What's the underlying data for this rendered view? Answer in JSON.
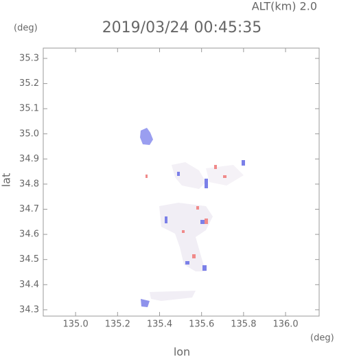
{
  "chart_data": {
    "type": "map",
    "title": "2019/03/24 00:45:35",
    "subtitle": "ALT(km) 2.0",
    "x_label": "lon",
    "x_unit": "(deg)",
    "y_label": "lat",
    "y_unit": "(deg)",
    "xlim": [
      134.846,
      136.16
    ],
    "ylim": [
      34.275,
      35.341
    ],
    "xticks": [
      {
        "value": 135.0,
        "label": "135.0"
      },
      135.2,
      135.4,
      135.6,
      135.8,
      {
        "value": 136.0,
        "label": "136.0"
      }
    ],
    "yticks": [
      34.3,
      34.4,
      34.5,
      34.6,
      34.7,
      34.8,
      34.9,
      {
        "value": 35.0,
        "label": "35.0"
      },
      35.1,
      35.2,
      35.3
    ]
  }
}
